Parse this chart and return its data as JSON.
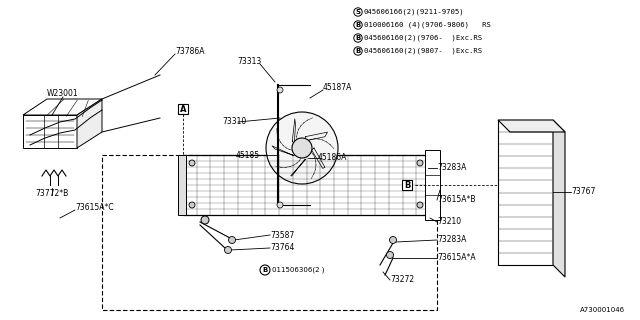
{
  "bg_color": "#ffffff",
  "line_color": "#000000",
  "diagram_code": "A730001046",
  "legend_lines": [
    [
      "S",
      "045606166(2)(9211-9705)"
    ],
    [
      "B",
      "010006160 (4)(9706-9806)   RS"
    ],
    [
      "B",
      "045606160(2)(9706-  )Exc.RS"
    ],
    [
      "B",
      "045606160(2)(9807-  )Exc.RS"
    ]
  ],
  "fs_label": 5.5,
  "fs_tiny": 5.0,
  "fs_legend": 5.2
}
